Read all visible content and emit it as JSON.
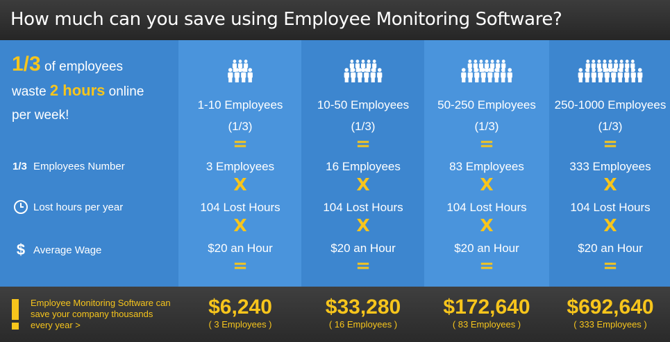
{
  "header": {
    "title": "How much can you save using Employee Monitoring Software?"
  },
  "intro": {
    "fraction": "1/3",
    "line1": " of employees",
    "line2a": "waste ",
    "hours": "2 hours",
    "line2b": " online",
    "line3": "per week!"
  },
  "rows": {
    "employees": {
      "prefix": "1/3",
      "label": "Employees Number",
      "icon": "fraction-label"
    },
    "hours": {
      "label": "Lost hours per year",
      "icon": "clock-icon"
    },
    "wage": {
      "label": "Average Wage",
      "icon": "dollar-icon"
    }
  },
  "operators": {
    "equals": "=",
    "times": "X"
  },
  "colors": {
    "accent": "#f7c51c",
    "panel": "#3d86cf",
    "panel_alt": "#4a94dc",
    "footer": "#333333"
  },
  "columns": [
    {
      "group": "1-10 Employees",
      "fraction": "(1/3)",
      "employees": "3 Employees",
      "hours": "104 Lost Hours",
      "wage": "$20 an Hour",
      "savings": "$6,240",
      "savings_note": "( 3 Employees )"
    },
    {
      "group": "10-50 Employees",
      "fraction": "(1/3)",
      "employees": "16 Employees",
      "hours": "104 Lost Hours",
      "wage": "$20 an Hour",
      "savings": "$33,280",
      "savings_note": "( 16 Employees )"
    },
    {
      "group": "50-250 Employees",
      "fraction": "(1/3)",
      "employees": "83 Employees",
      "hours": "104 Lost Hours",
      "wage": "$20 an Hour",
      "savings": "$172,640",
      "savings_note": "( 83 Employees )"
    },
    {
      "group": "250-1000 Employees",
      "fraction": "(1/3)",
      "employees": "333 Employees",
      "hours": "104 Lost Hours",
      "wage": "$20 an Hour",
      "savings": "$692,640",
      "savings_note": "( 333 Employees )"
    }
  ],
  "footer": {
    "icon": "exclamation-icon",
    "text": "Employee Monitoring Software can save your company thousands every year >"
  }
}
